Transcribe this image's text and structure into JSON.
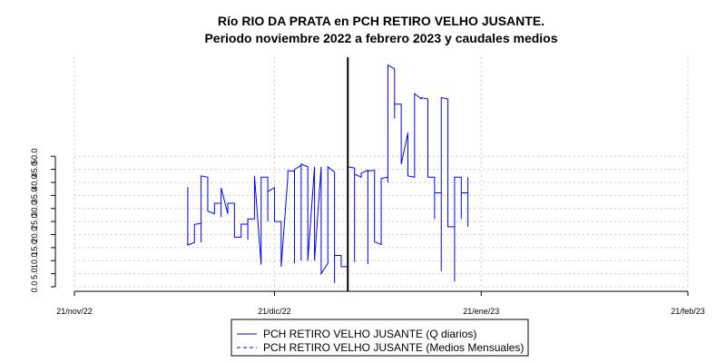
{
  "chart_data": {
    "type": "line",
    "title": "Río RIO DA PRATA en PCH RETIRO VELHO JUSANTE.",
    "subtitle": "Periodo noviembre 2022 a febrero 2023 y caudales medios",
    "xlabel": "",
    "ylabel": "",
    "x_tick_labels": [
      "21/nov/22",
      "21/dic/22",
      "21/ene/23",
      "21/feb/23"
    ],
    "y_ticks": [
      0.0,
      5.0,
      10.0,
      15.0,
      20.0,
      25.0,
      30.0,
      35.0,
      40.0,
      45.0,
      50.0
    ],
    "y_tick_labels": [
      "0.0",
      "5.0",
      "10.0",
      "15.0",
      "20.0",
      "25.0",
      "30.0",
      "35.0",
      "40.0",
      "45.0",
      "50.0"
    ],
    "ylim": [
      0,
      88
    ],
    "xlim": [
      "2022-11-21",
      "2023-02-21"
    ],
    "grid": true,
    "vline_date": "2023-01-01",
    "legend_position": "bottom",
    "series": [
      {
        "name": "PCH RETIRO VELHO JUSANTE (Q diarios)",
        "color": "#0000ff",
        "style": "solid",
        "points": [
          [
            "2022-12-08",
            38.2
          ],
          [
            "2022-12-08",
            16.0
          ],
          [
            "2022-12-09",
            17.0
          ],
          [
            "2022-12-09",
            23.9
          ],
          [
            "2022-12-10",
            24.3
          ],
          [
            "2022-12-10",
            17.0
          ],
          [
            "2022-12-10",
            42.5
          ],
          [
            "2022-12-11",
            42.0
          ],
          [
            "2022-12-11",
            29.0
          ],
          [
            "2022-12-12",
            28.0
          ],
          [
            "2022-12-12",
            32.0
          ],
          [
            "2022-12-13",
            32.0
          ],
          [
            "2022-12-13",
            26.7
          ],
          [
            "2022-12-13",
            37.9
          ],
          [
            "2022-12-14",
            28.0
          ],
          [
            "2022-12-14",
            32.0
          ],
          [
            "2022-12-15",
            32.0
          ],
          [
            "2022-12-15",
            19.0
          ],
          [
            "2022-12-16",
            19.0
          ],
          [
            "2022-12-16",
            24.0
          ],
          [
            "2022-12-17",
            24.0
          ],
          [
            "2022-12-17",
            18.0
          ],
          [
            "2022-12-17",
            26.0
          ],
          [
            "2022-12-18",
            26.0
          ],
          [
            "2022-12-18",
            42.5
          ],
          [
            "2022-12-19",
            8.5
          ],
          [
            "2022-12-19",
            42.0
          ],
          [
            "2022-12-20",
            42.0
          ],
          [
            "2022-12-20",
            25.0
          ],
          [
            "2022-12-20",
            36.5
          ],
          [
            "2022-12-21",
            38.0
          ],
          [
            "2022-12-21",
            25.0
          ],
          [
            "2022-12-22",
            25.0
          ],
          [
            "2022-12-22",
            7.7
          ],
          [
            "2022-12-23",
            42.0
          ],
          [
            "2022-12-23",
            44.5
          ],
          [
            "2022-12-24",
            44.3
          ],
          [
            "2022-12-24",
            9.0
          ],
          [
            "2022-12-24",
            45.0
          ],
          [
            "2022-12-25",
            46.5
          ],
          [
            "2022-12-25",
            10.0
          ],
          [
            "2022-12-25",
            47.0
          ],
          [
            "2022-12-26",
            46.0
          ],
          [
            "2022-12-26",
            10.0
          ],
          [
            "2022-12-27",
            46.0
          ],
          [
            "2022-12-27",
            45.0
          ],
          [
            "2022-12-27",
            10.0
          ],
          [
            "2022-12-28",
            46.0
          ],
          [
            "2022-12-28",
            5.0
          ],
          [
            "2022-12-29",
            9.0
          ],
          [
            "2022-12-29",
            46.0
          ],
          [
            "2022-12-30",
            44.0
          ],
          [
            "2022-12-30",
            1.5
          ],
          [
            "2022-12-30",
            12.0
          ],
          [
            "2022-12-31",
            12.0
          ],
          [
            "2022-12-31",
            7.7
          ],
          [
            "2023-01-01",
            7.7
          ],
          [
            "2023-01-01",
            46.0
          ],
          [
            "2023-01-02",
            45.5
          ],
          [
            "2023-01-02",
            9.5
          ],
          [
            "2023-01-02",
            43.2
          ],
          [
            "2023-01-03",
            42.0
          ],
          [
            "2023-01-03",
            43.5
          ],
          [
            "2023-01-04",
            44.7
          ],
          [
            "2023-01-04",
            8.7
          ],
          [
            "2023-01-04",
            44.4
          ],
          [
            "2023-01-05",
            44.6
          ],
          [
            "2023-01-05",
            17.2
          ],
          [
            "2023-01-06",
            16.2
          ],
          [
            "2023-01-06",
            41.5
          ],
          [
            "2023-01-07",
            42.0
          ],
          [
            "2023-01-07",
            40.0
          ],
          [
            "2023-01-07",
            85.0
          ],
          [
            "2023-01-08",
            83.5
          ],
          [
            "2023-01-08",
            64.5
          ],
          [
            "2023-01-08",
            70.0
          ],
          [
            "2023-01-09",
            70.0
          ],
          [
            "2023-01-09",
            47.0
          ],
          [
            "2023-01-10",
            59.0
          ],
          [
            "2023-01-10",
            42.5
          ],
          [
            "2023-01-11",
            42.0
          ],
          [
            "2023-01-11",
            74.0
          ],
          [
            "2023-01-12",
            72.0
          ],
          [
            "2023-01-12",
            72.5
          ],
          [
            "2023-01-13",
            72.0
          ],
          [
            "2023-01-13",
            42.0
          ],
          [
            "2023-01-14",
            42.0
          ],
          [
            "2023-01-14",
            26.0
          ],
          [
            "2023-01-14",
            36.0
          ],
          [
            "2023-01-15",
            36.0
          ],
          [
            "2023-01-15",
            6.0
          ],
          [
            "2023-01-15",
            72.5
          ],
          [
            "2023-01-16",
            72.0
          ],
          [
            "2023-01-16",
            23.0
          ],
          [
            "2023-01-17",
            23.0
          ],
          [
            "2023-01-17",
            2.0
          ],
          [
            "2023-01-17",
            42.0
          ],
          [
            "2023-01-18",
            42.0
          ],
          [
            "2023-01-18",
            26.0
          ],
          [
            "2023-01-18",
            36.0
          ],
          [
            "2023-01-19",
            36.0
          ],
          [
            "2023-01-19",
            42.0
          ],
          [
            "2023-01-19",
            23.0
          ]
        ]
      },
      {
        "name": "PCH RETIRO VELHO JUSANTE (Medios Mensuales)",
        "color": "#0000ff",
        "style": "dashed",
        "points": []
      }
    ]
  }
}
